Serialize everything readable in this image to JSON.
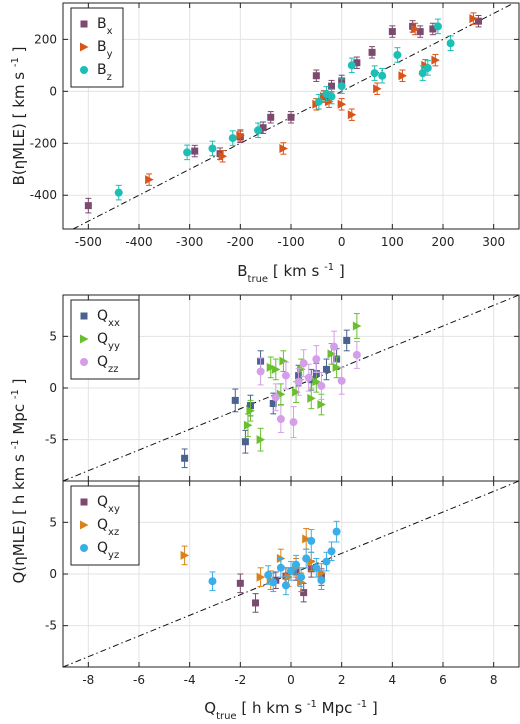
{
  "chart_data": [
    {
      "type": "scatter",
      "id": "B",
      "xlabel": "B",
      "xlabel_sub": "true",
      "xlabel_unit": "[ km s",
      "xlabel_unit_sup": "-1",
      "xlabel_unit_end": "]",
      "ylabel": "B(ηMLE)  [ km s",
      "ylabel_sup": "-1",
      "ylabel_end": "]",
      "xlim": [
        -550,
        350
      ],
      "ylim": [
        -530,
        340
      ],
      "xticks": [
        -500,
        -400,
        -300,
        -200,
        -100,
        0,
        100,
        200,
        300
      ],
      "yticks": [
        -400,
        -200,
        0,
        200
      ],
      "grid": true,
      "legend": "top-left",
      "reference_line": "y = x (dash-dot)",
      "series": [
        {
          "name": "B",
          "sub": "x",
          "color": "#7b4a6e",
          "marker": "square",
          "points": [
            [
              -500,
              -440,
              28
            ],
            [
              -290,
              -230,
              22
            ],
            [
              -240,
              -240,
              22
            ],
            [
              -200,
              -175,
              22
            ],
            [
              -155,
              -140,
              22
            ],
            [
              -140,
              -100,
              22
            ],
            [
              -100,
              -100,
              22
            ],
            [
              -50,
              60,
              22
            ],
            [
              -35,
              -20,
              22
            ],
            [
              -20,
              20,
              22
            ],
            [
              0,
              40,
              22
            ],
            [
              30,
              110,
              22
            ],
            [
              60,
              150,
              22
            ],
            [
              100,
              230,
              22
            ],
            [
              140,
              250,
              22
            ],
            [
              155,
              230,
              22
            ],
            [
              180,
              240,
              22
            ],
            [
              270,
              270,
              22
            ]
          ]
        },
        {
          "name": "B",
          "sub": "y",
          "color": "#d9541a",
          "marker": "triangle-right",
          "points": [
            [
              -380,
              -340,
              22
            ],
            [
              -235,
              -250,
              22
            ],
            [
              -200,
              -170,
              22
            ],
            [
              -115,
              -220,
              22
            ],
            [
              -50,
              -50,
              22
            ],
            [
              -35,
              -20,
              22
            ],
            [
              -25,
              -40,
              22
            ],
            [
              0,
              -50,
              22
            ],
            [
              20,
              -90,
              22
            ],
            [
              70,
              10,
              22
            ],
            [
              120,
              60,
              22
            ],
            [
              145,
              240,
              22
            ],
            [
              165,
              100,
              22
            ],
            [
              185,
              120,
              22
            ],
            [
              260,
              280,
              22
            ]
          ]
        },
        {
          "name": "B",
          "sub": "z",
          "color": "#1bbfb5",
          "marker": "circle",
          "points": [
            [
              -440,
              -390,
              28
            ],
            [
              -305,
              -235,
              28
            ],
            [
              -255,
              -220,
              28
            ],
            [
              -215,
              -180,
              28
            ],
            [
              -165,
              -150,
              28
            ],
            [
              -45,
              -40,
              28
            ],
            [
              -30,
              -10,
              28
            ],
            [
              -20,
              -20,
              28
            ],
            [
              0,
              20,
              28
            ],
            [
              20,
              100,
              28
            ],
            [
              65,
              70,
              28
            ],
            [
              80,
              60,
              28
            ],
            [
              110,
              140,
              28
            ],
            [
              160,
              70,
              28
            ],
            [
              170,
              90,
              28
            ],
            [
              190,
              250,
              28
            ],
            [
              215,
              185,
              28
            ]
          ]
        }
      ]
    },
    {
      "type": "scatter",
      "id": "Qdiag",
      "xlim": [
        -9,
        9
      ],
      "ylim": [
        -9,
        9
      ],
      "yticks": [
        -5,
        0,
        5
      ],
      "grid": true,
      "legend": "top-left",
      "reference_line": "y = x (dash-dot)",
      "series": [
        {
          "name": "Q",
          "sub": "xx",
          "color": "#4a628f",
          "marker": "square",
          "points": [
            [
              -4.2,
              -6.8,
              0.9
            ],
            [
              -2.2,
              -1.2,
              1.1
            ],
            [
              -1.8,
              -5.2,
              1.1
            ],
            [
              -1.6,
              -1.7,
              1.0
            ],
            [
              -1.2,
              2.6,
              1.0
            ],
            [
              -0.7,
              -1.5,
              1.0
            ],
            [
              0.3,
              1.2,
              1.0
            ],
            [
              0.8,
              0.8,
              1.0
            ],
            [
              1.0,
              1.4,
              1.0
            ],
            [
              1.4,
              1.8,
              1.0
            ],
            [
              1.8,
              2.8,
              1.0
            ],
            [
              2.2,
              4.6,
              1.0
            ]
          ]
        },
        {
          "name": "Q",
          "sub": "yy",
          "color": "#6abf2e",
          "marker": "triangle-right",
          "points": [
            [
              -1.6,
              -2.2,
              1.0
            ],
            [
              -1.7,
              -3.6,
              1.1
            ],
            [
              -1.2,
              -5.0,
              1.1
            ],
            [
              -0.8,
              2.0,
              1.0
            ],
            [
              -0.6,
              1.8,
              1.0
            ],
            [
              -0.4,
              -0.6,
              1.0
            ],
            [
              -0.3,
              2.6,
              1.0
            ],
            [
              0.2,
              -0.4,
              1.0
            ],
            [
              0.4,
              1.8,
              1.0
            ],
            [
              0.8,
              -1.0,
              1.0
            ],
            [
              1.0,
              0.6,
              1.0
            ],
            [
              1.2,
              -1.6,
              1.0
            ],
            [
              1.6,
              3.3,
              1.0
            ],
            [
              1.8,
              2.0,
              1.0
            ],
            [
              2.6,
              6.0,
              1.2
            ]
          ]
        },
        {
          "name": "Q",
          "sub": "zz",
          "color": "#d49ee8",
          "marker": "circle",
          "points": [
            [
              -1.2,
              1.6,
              1.3
            ],
            [
              -0.6,
              -0.9,
              1.3
            ],
            [
              -0.4,
              -3.0,
              1.3
            ],
            [
              -0.2,
              1.2,
              1.3
            ],
            [
              0.1,
              -3.3,
              1.5
            ],
            [
              0.3,
              0.6,
              1.3
            ],
            [
              0.5,
              2.4,
              1.3
            ],
            [
              0.7,
              1.0,
              1.3
            ],
            [
              1.0,
              2.8,
              1.3
            ],
            [
              1.2,
              0.2,
              1.3
            ],
            [
              1.7,
              4.0,
              1.5
            ],
            [
              2.0,
              0.7,
              1.3
            ],
            [
              2.6,
              3.2,
              1.3
            ]
          ]
        }
      ]
    },
    {
      "type": "scatter",
      "id": "Qoff",
      "xlabel": "Q",
      "xlabel_sub": "true",
      "xlabel_unit": "[ h km s",
      "xlabel_unit_sup": "-1",
      "xlabel_unit_mid": " Mpc",
      "xlabel_unit_sup2": "-1",
      "xlabel_unit_end": "]",
      "ylabel": "Q(ηMLE)  [ h km s",
      "ylabel_sup": "-1",
      "ylabel_mid": " Mpc",
      "ylabel_sup2": "-1",
      "ylabel_end": "]",
      "xlim": [
        -9,
        9
      ],
      "ylim": [
        -9,
        9
      ],
      "xticks": [
        -8,
        -6,
        -4,
        -2,
        0,
        2,
        4,
        6,
        8
      ],
      "yticks": [
        -5,
        0,
        5
      ],
      "grid": true,
      "legend": "top-left",
      "reference_line": "y = x (dash-dot)",
      "series": [
        {
          "name": "Q",
          "sub": "xy",
          "color": "#7b4a6e",
          "marker": "square",
          "points": [
            [
              -2.0,
              -0.9,
              0.9
            ],
            [
              -1.4,
              -2.8,
              0.9
            ],
            [
              -0.6,
              -0.6,
              0.8
            ],
            [
              -0.2,
              -0.2,
              0.8
            ],
            [
              0.2,
              0.2,
              0.8
            ],
            [
              0.5,
              -1.8,
              0.9
            ],
            [
              0.8,
              0.5,
              0.8
            ],
            [
              1.2,
              -0.3,
              0.8
            ]
          ]
        },
        {
          "name": "Q",
          "sub": "xz",
          "color": "#d9821a",
          "marker": "triangle-right",
          "points": [
            [
              -4.2,
              1.8,
              0.9
            ],
            [
              -1.2,
              -0.3,
              0.9
            ],
            [
              -0.8,
              -0.6,
              0.9
            ],
            [
              -0.4,
              1.5,
              0.9
            ],
            [
              -0.1,
              -0.3,
              0.9
            ],
            [
              0.2,
              0.6,
              0.9
            ],
            [
              0.4,
              -0.8,
              0.9
            ],
            [
              0.6,
              3.4,
              1.0
            ],
            [
              0.8,
              1.2,
              0.9
            ],
            [
              1.2,
              0.1,
              0.9
            ]
          ]
        },
        {
          "name": "Q",
          "sub": "yz",
          "color": "#3aaee8",
          "marker": "circle",
          "points": [
            [
              -3.1,
              -0.7,
              0.9
            ],
            [
              -0.9,
              -0.1,
              0.9
            ],
            [
              -0.7,
              -0.8,
              0.9
            ],
            [
              -0.4,
              0.6,
              0.9
            ],
            [
              -0.2,
              -1.1,
              0.9
            ],
            [
              0.0,
              0.3,
              0.9
            ],
            [
              0.2,
              0.9,
              0.9
            ],
            [
              0.4,
              -0.3,
              0.9
            ],
            [
              0.6,
              1.5,
              0.9
            ],
            [
              0.8,
              3.2,
              1.1
            ],
            [
              1.0,
              0.6,
              0.9
            ],
            [
              1.2,
              -0.6,
              0.9
            ],
            [
              1.4,
              1.2,
              0.9
            ],
            [
              1.6,
              2.2,
              0.9
            ],
            [
              1.8,
              4.1,
              1.0
            ]
          ]
        }
      ]
    }
  ]
}
